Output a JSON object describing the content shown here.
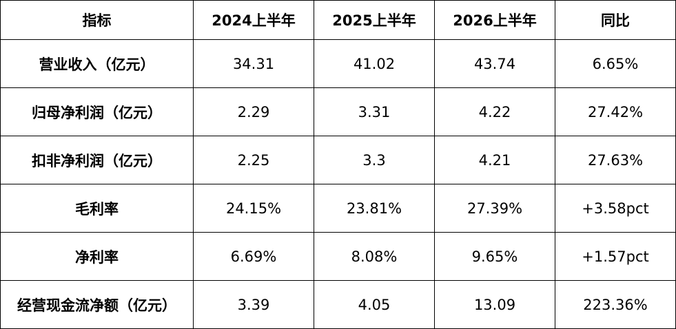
{
  "table": {
    "headers": [
      "指标",
      "2024上半年",
      "2025上半年",
      "2026上半年",
      "同比"
    ],
    "rows": [
      {
        "label": "营业收入（亿元）",
        "values": [
          "34.31",
          "41.02",
          "43.74",
          "6.65%"
        ]
      },
      {
        "label": "归母净利润（亿元）",
        "values": [
          "2.29",
          "3.31",
          "4.22",
          "27.42%"
        ]
      },
      {
        "label": "扣非净利润（亿元）",
        "values": [
          "2.25",
          "3.3",
          "4.21",
          "27.63%"
        ]
      },
      {
        "label": "毛利率",
        "values": [
          "24.15%",
          "23.81%",
          "27.39%",
          "+3.58pct"
        ]
      },
      {
        "label": "净利率",
        "values": [
          "6.69%",
          "8.08%",
          "9.65%",
          "+1.57pct"
        ]
      },
      {
        "label": "经营现金流净额（亿元）",
        "values": [
          "3.39",
          "4.05",
          "13.09",
          "223.36%"
        ]
      }
    ]
  }
}
